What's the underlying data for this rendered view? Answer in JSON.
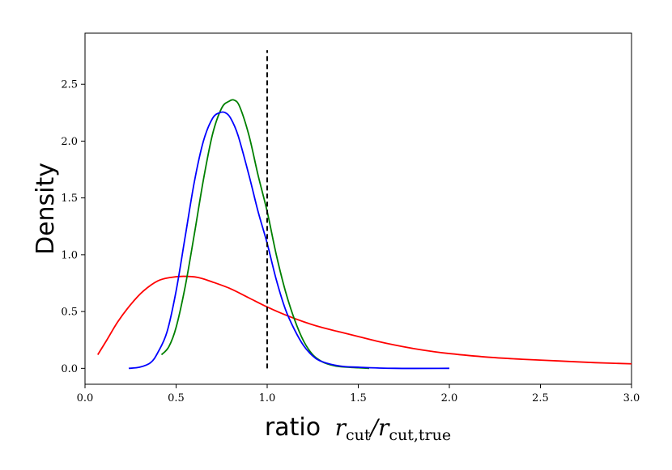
{
  "chart_data": {
    "type": "line",
    "title": "",
    "xlabel": {
      "prefix": "ratio",
      "num_var": "r",
      "num_sub": "cut",
      "slash": "/",
      "den_var": "r",
      "den_sub": "cut,true"
    },
    "ylabel": "Density",
    "xlim": [
      0.0,
      3.0
    ],
    "ylim": [
      -0.14,
      2.95
    ],
    "xticks": [
      0.0,
      0.5,
      1.0,
      1.5,
      2.0,
      2.5,
      3.0
    ],
    "xtick_labels": [
      "0.0",
      "0.5",
      "1.0",
      "1.5",
      "2.0",
      "2.5",
      "3.0"
    ],
    "yticks": [
      0.0,
      0.5,
      1.0,
      1.5,
      2.0,
      2.5
    ],
    "ytick_labels": [
      "0.0",
      "0.5",
      "1.0",
      "1.5",
      "2.0",
      "2.5"
    ],
    "grid": false,
    "series": [
      {
        "color": "#ff0000",
        "x": [
          0.07,
          0.12,
          0.18,
          0.25,
          0.32,
          0.4,
          0.47,
          0.54,
          0.62,
          0.7,
          0.8,
          0.9,
          1.0,
          1.1,
          1.2,
          1.3,
          1.4,
          1.5,
          1.6,
          1.7,
          1.8,
          1.9,
          2.0,
          2.2,
          2.4,
          2.6,
          2.8,
          3.0
        ],
        "y": [
          0.12,
          0.25,
          0.41,
          0.56,
          0.68,
          0.77,
          0.8,
          0.81,
          0.8,
          0.76,
          0.7,
          0.62,
          0.54,
          0.47,
          0.41,
          0.36,
          0.32,
          0.28,
          0.24,
          0.205,
          0.175,
          0.15,
          0.13,
          0.1,
          0.08,
          0.065,
          0.05,
          0.04
        ]
      },
      {
        "color": "#008000",
        "x": [
          0.42,
          0.46,
          0.5,
          0.55,
          0.6,
          0.65,
          0.7,
          0.75,
          0.79,
          0.82,
          0.85,
          0.9,
          0.95,
          1.0,
          1.05,
          1.1,
          1.15,
          1.2,
          1.25,
          1.3,
          1.35,
          1.4,
          1.5,
          1.56
        ],
        "y": [
          0.12,
          0.19,
          0.36,
          0.72,
          1.18,
          1.66,
          2.06,
          2.29,
          2.35,
          2.36,
          2.3,
          2.05,
          1.7,
          1.38,
          1.0,
          0.68,
          0.43,
          0.24,
          0.12,
          0.06,
          0.03,
          0.015,
          0.005,
          0.0
        ]
      },
      {
        "color": "#0000ff",
        "x": [
          0.24,
          0.3,
          0.36,
          0.4,
          0.45,
          0.5,
          0.55,
          0.6,
          0.65,
          0.7,
          0.74,
          0.77,
          0.8,
          0.84,
          0.9,
          0.95,
          1.0,
          1.05,
          1.1,
          1.15,
          1.2,
          1.25,
          1.3,
          1.4,
          1.5,
          1.7,
          2.0
        ],
        "y": [
          0.0,
          0.01,
          0.05,
          0.14,
          0.32,
          0.68,
          1.16,
          1.64,
          2.0,
          2.2,
          2.25,
          2.25,
          2.2,
          2.05,
          1.7,
          1.38,
          1.1,
          0.78,
          0.52,
          0.34,
          0.2,
          0.11,
          0.06,
          0.02,
          0.01,
          0.0,
          0.0
        ]
      }
    ],
    "reference_line": {
      "x": 1.0,
      "y_range": [
        0.0,
        2.8
      ],
      "style": "dashed",
      "color": "#000000"
    }
  }
}
